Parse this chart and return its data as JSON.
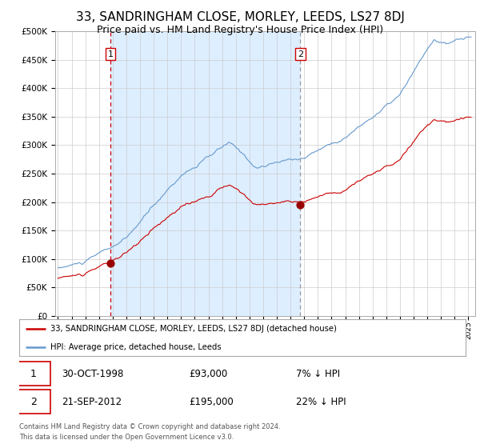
{
  "title": "33, SANDRINGHAM CLOSE, MORLEY, LEEDS, LS27 8DJ",
  "subtitle": "Price paid vs. HM Land Registry's House Price Index (HPI)",
  "title_fontsize": 11,
  "subtitle_fontsize": 9,
  "legend_label_red": "33, SANDRINGHAM CLOSE, MORLEY, LEEDS, LS27 8DJ (detached house)",
  "legend_label_blue": "HPI: Average price, detached house, Leeds",
  "sale1_date": "30-OCT-1998",
  "sale1_price": 93000,
  "sale1_info": "7% ↓ HPI",
  "sale2_date": "21-SEP-2012",
  "sale2_price": 195000,
  "sale2_info": "22% ↓ HPI",
  "footer": "Contains HM Land Registry data © Crown copyright and database right 2024.\nThis data is licensed under the Open Government Licence v3.0.",
  "red_line_color": "#cc0000",
  "blue_line_color": "#6699cc",
  "marker_color": "#990000",
  "vline1_color": "#cc0000",
  "vline2_color": "#999999",
  "sale1_x": 1998.83,
  "sale2_x": 2012.72,
  "ylim_max": 500000,
  "xlim_min": 1994.8,
  "xlim_max": 2025.5
}
